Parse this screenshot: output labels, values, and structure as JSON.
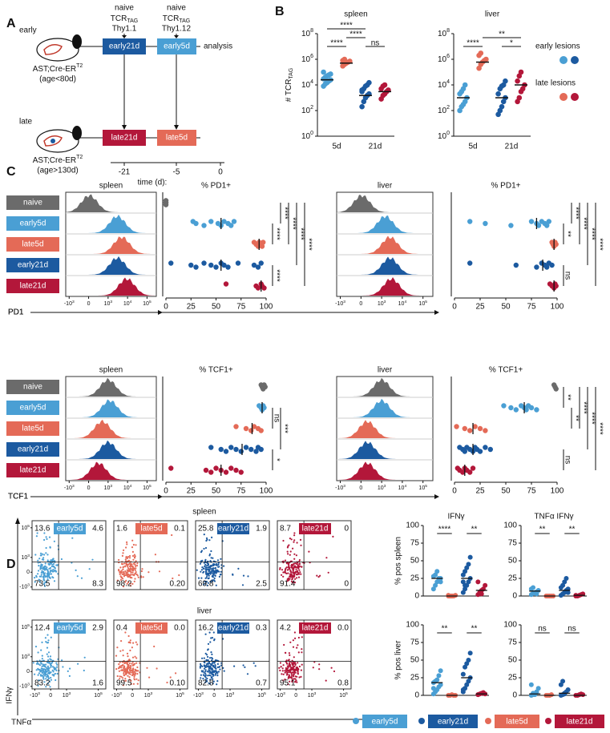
{
  "panel_a": {
    "label": "A",
    "injections": [
      {
        "naive": "naive",
        "tcr": "TCR",
        "sub": "TAG",
        "marker": "Thy1.1"
      },
      {
        "naive": "naive",
        "tcr": "TCR",
        "sub": "TAG",
        "marker": "Thy1.12"
      }
    ],
    "cohorts": [
      {
        "name": "early",
        "strain": "AST;Cre-ER",
        "sup": "T2",
        "age": "(age<80d)",
        "boxes": [
          "early21d",
          "early5d"
        ],
        "colors": [
          "#1c5aa0",
          "#4a9fd4"
        ]
      },
      {
        "name": "late",
        "strain": "AST;Cre-ER",
        "sup": "T2",
        "age": "(age>130d)",
        "boxes": [
          "late21d",
          "late5d"
        ],
        "colors": [
          "#b3173a",
          "#e46a57"
        ]
      }
    ],
    "analysis": "analysis",
    "time_ticks": [
      -21,
      -5,
      0
    ],
    "time_label": "time (d):"
  },
  "panel_b": {
    "label": "B",
    "y_label": "# TCR",
    "y_label_sub": "TAG",
    "yscale": "log",
    "ylim": [
      1,
      100000000
    ],
    "yticks": [
      {
        "value": 1,
        "label": "10",
        "exp": "0"
      },
      {
        "value": 100,
        "label": "10",
        "exp": "2"
      },
      {
        "value": 10000,
        "label": "10",
        "exp": "4"
      },
      {
        "value": 1000000,
        "label": "10",
        "exp": "6"
      },
      {
        "value": 100000000,
        "label": "10",
        "exp": "8"
      }
    ],
    "categories": [
      "5d",
      "21d"
    ],
    "legend": [
      {
        "name": "early lesions",
        "colors": [
          "#4a9fd4",
          "#1c5aa0"
        ]
      },
      {
        "name": "late lesions",
        "colors": [
          "#e46a57",
          "#b3173a"
        ]
      }
    ],
    "charts": [
      {
        "title": "spleen",
        "groups": [
          {
            "color": "#4a9fd4",
            "values": [
              8000,
              12000,
              15000,
              20000,
              25000,
              30000,
              40000,
              50000,
              60000,
              70000,
              100000,
              30000
            ],
            "median": 25000
          },
          {
            "color": "#e46a57",
            "values": [
              300000,
              400000,
              500000,
              600000,
              700000,
              800000,
              1000000
            ],
            "median": 500000
          },
          {
            "color": "#1c5aa0",
            "values": [
              200,
              500,
              1000,
              1500,
              2000,
              3000,
              5000,
              8000,
              10000,
              15000,
              4000
            ],
            "median": 1500
          },
          {
            "color": "#b3173a",
            "values": [
              800,
              1500,
              2000,
              3000,
              4000,
              5000,
              8000,
              10000
            ],
            "median": 3000
          }
        ],
        "brackets": [
          {
            "from": 0,
            "to": 1,
            "text": "****"
          },
          {
            "from": 2,
            "to": 3,
            "text": "ns"
          },
          {
            "from": 1,
            "to": 2,
            "text": "****"
          },
          {
            "from": 0,
            "to": 2,
            "text": "****"
          }
        ]
      },
      {
        "title": "liver",
        "groups": [
          {
            "color": "#4a9fd4",
            "values": [
              100,
              200,
              300,
              500,
              1000,
              2000,
              3000,
              5000,
              10000
            ],
            "median": 1000
          },
          {
            "color": "#e46a57",
            "values": [
              200000,
              400000,
              600000,
              800000,
              1000000,
              2000000,
              3000000
            ],
            "median": 600000
          },
          {
            "color": "#1c5aa0",
            "values": [
              50,
              100,
              200,
              500,
              1000,
              2000,
              5000,
              8000,
              10000,
              20000
            ],
            "median": 1000
          },
          {
            "color": "#b3173a",
            "values": [
              500,
              1000,
              3000,
              5000,
              10000,
              20000,
              50000,
              100000
            ],
            "median": 10000
          }
        ],
        "brackets": [
          {
            "from": 0,
            "to": 1,
            "text": "****"
          },
          {
            "from": 2,
            "to": 3,
            "text": "*"
          },
          {
            "from": 1,
            "to": 3,
            "text": "**"
          }
        ]
      }
    ]
  },
  "panel_c": {
    "label": "C",
    "groups": [
      "naive",
      "early5d",
      "late5d",
      "early21d",
      "late21d"
    ],
    "group_colors": [
      "#6b6b6b",
      "#4a9fd4",
      "#e46a57",
      "#1c5aa0",
      "#b3173a"
    ],
    "hist_xlim": [
      -1500,
      300000
    ],
    "hist_xticks": [
      {
        "value": -1000,
        "label": "-10",
        "exp": "3"
      },
      0,
      {
        "value": 1000,
        "label": "10",
        "exp": "3"
      },
      {
        "value": 10000,
        "label": "10",
        "exp": "4"
      },
      {
        "value": 100000,
        "label": "10",
        "exp": "5"
      }
    ],
    "xlim": [
      0,
      100
    ],
    "xticks": [
      0,
      25,
      50,
      75,
      100
    ],
    "plots": [
      {
        "tissue": "spleen",
        "title": "% PD1+",
        "marker": "PD1",
        "peaks": [
          40,
          3000,
          5000,
          3000,
          9000
        ],
        "values": [
          [
            0,
            0,
            0,
            0,
            0,
            0
          ],
          [
            27,
            30,
            38,
            45,
            52,
            55,
            58,
            62,
            65,
            68
          ],
          [
            88,
            90,
            92,
            93,
            95,
            96,
            97
          ],
          [
            5,
            25,
            30,
            38,
            45,
            50,
            55,
            58,
            62,
            72,
            88,
            92,
            95
          ],
          [
            60,
            90,
            92,
            95,
            96,
            98
          ]
        ],
        "medians": [
          null,
          55,
          93,
          55,
          95
        ],
        "brackets": [
          {
            "from": 1,
            "to": 2,
            "text": "****"
          },
          {
            "from": 3,
            "to": 4,
            "text": "****"
          },
          {
            "from": 0,
            "to": 1,
            "text": "****"
          },
          {
            "from": 0,
            "to": 2,
            "text": "****"
          },
          {
            "from": 0,
            "to": 3,
            "text": "****"
          },
          {
            "from": 0,
            "to": 4,
            "text": "****"
          }
        ]
      },
      {
        "tissue": "liver",
        "title": "% PD1+",
        "marker": "PD1",
        "peaks": [
          40,
          1500,
          2500,
          2500,
          3000
        ],
        "values": [
          [],
          [
            15,
            30,
            55,
            75,
            80,
            82,
            85,
            88,
            90,
            92
          ],
          [
            95,
            96,
            97,
            98,
            99
          ],
          [
            15,
            60,
            80,
            85,
            88,
            90,
            92,
            95
          ],
          [
            93,
            95,
            97,
            98,
            99
          ]
        ],
        "medians": [
          null,
          80,
          97,
          86,
          97
        ],
        "brackets": [
          {
            "from": 1,
            "to": 2,
            "text": "**"
          },
          {
            "from": 3,
            "to": 4,
            "text": "ns"
          },
          {
            "from": 0,
            "to": 1,
            "text": "****"
          },
          {
            "from": 0,
            "to": 2,
            "text": "****"
          },
          {
            "from": 0,
            "to": 3,
            "text": "****"
          },
          {
            "from": 0,
            "to": 4,
            "text": "****"
          }
        ]
      },
      {
        "tissue": "spleen",
        "title": "% TCF1+",
        "marker": "TCF1",
        "peaks": [
          1000,
          1200,
          700,
          1000,
          500
        ],
        "values": [
          [
            95,
            96,
            97,
            98,
            99
          ],
          [
            93,
            95,
            96,
            97,
            98
          ],
          [
            70,
            80,
            85,
            88,
            92,
            95
          ],
          [
            45,
            55,
            60,
            65,
            70,
            75,
            80,
            85,
            90,
            92,
            95
          ],
          [
            5,
            40,
            45,
            50,
            55,
            60,
            65,
            70,
            75
          ]
        ],
        "medians": [
          null,
          96,
          86,
          76,
          55
        ],
        "brackets": [
          {
            "from": 1,
            "to": 2,
            "text": "ns"
          },
          {
            "from": 3,
            "to": 4,
            "text": "*"
          },
          {
            "from": 1,
            "to": 3,
            "text": "***"
          }
        ]
      },
      {
        "tissue": "liver",
        "title": "% TCF1+",
        "marker": "TCF1",
        "peaks": [
          1000,
          1000,
          300,
          300,
          300
        ],
        "values": [
          [
            97,
            98,
            99
          ],
          [
            48,
            55,
            60,
            65,
            68,
            70,
            72,
            75,
            80
          ],
          [
            2,
            10,
            15,
            20,
            25,
            30
          ],
          [
            5,
            8,
            10,
            12,
            15,
            18,
            20,
            22,
            25,
            30,
            35
          ],
          [
            3,
            5,
            8,
            10,
            12,
            15,
            18
          ]
        ],
        "medians": [
          null,
          68,
          18,
          18,
          10
        ],
        "brackets": [
          {
            "from": 0,
            "to": 1,
            "text": "**"
          },
          {
            "from": 1,
            "to": 2,
            "text": "**"
          },
          {
            "from": 3,
            "to": 4,
            "text": "ns"
          },
          {
            "from": 0,
            "to": 2,
            "text": "****"
          },
          {
            "from": 0,
            "to": 3,
            "text": "****"
          },
          {
            "from": 0,
            "to": 4,
            "text": "****"
          }
        ]
      }
    ]
  },
  "panel_d": {
    "label": "D",
    "x_marker": "TNFα",
    "y_marker": "IFNγ",
    "flow_lim": [
      -1500,
      300000
    ],
    "flow_ticks": [
      {
        "value": -1000,
        "label": "-10",
        "exp": "3"
      },
      0,
      {
        "value": 1000,
        "label": "10",
        "exp": "3"
      },
      {
        "value": 100000,
        "label": "10",
        "exp": "5"
      }
    ],
    "tissues": [
      {
        "name": "spleen",
        "y_label": "% pos spleen",
        "plots": [
          {
            "group": "early5d",
            "color": "#4a9fd4",
            "q": [
              "13.6",
              "4.6",
              "73.5",
              "8.3"
            ]
          },
          {
            "group": "late5d",
            "color": "#e46a57",
            "q": [
              "1.6",
              "0.1",
              "98.2",
              "0.20"
            ]
          },
          {
            "group": "early21d",
            "color": "#1c5aa0",
            "q": [
              "25.8",
              "1.9",
              "69.8",
              "2.5"
            ]
          },
          {
            "group": "late21d",
            "color": "#b3173a",
            "q": [
              "8.7",
              "0",
              "91.4",
              "0"
            ]
          }
        ],
        "charts": [
          {
            "values": [
              [
                10,
                15,
                20,
                22,
                25,
                28,
                30,
                35,
                25,
                20
              ],
              [
                0,
                0,
                0,
                0,
                1,
                1,
                0,
                0
              ],
              [
                5,
                10,
                15,
                20,
                25,
                30,
                35,
                40,
                45,
                55,
                20,
                15
              ],
              [
                2,
                5,
                8,
                10,
                15,
                20,
                5,
                3
              ]
            ],
            "medians": [
              25,
              0,
              25,
              8
            ],
            "brackets": [
              {
                "from": 0,
                "to": 1,
                "text": "****"
              },
              {
                "from": 2,
                "to": 3,
                "text": "**"
              }
            ]
          },
          {
            "values": [
              [
                2,
                4,
                5,
                6,
                8,
                10,
                12,
                5,
                3
              ],
              [
                0,
                0,
                0,
                0,
                0
              ],
              [
                1,
                3,
                5,
                8,
                10,
                12,
                15,
                20,
                25,
                5
              ],
              [
                0,
                0,
                1,
                2,
                3,
                1
              ]
            ],
            "medians": [
              7,
              0,
              8,
              1
            ],
            "brackets": [
              {
                "from": 0,
                "to": 1,
                "text": "**"
              },
              {
                "from": 2,
                "to": 3,
                "text": "**"
              }
            ]
          }
        ]
      },
      {
        "name": "liver",
        "y_label": "% pos liver",
        "plots": [
          {
            "group": "early5d",
            "color": "#4a9fd4",
            "q": [
              "12.4",
              "2.9",
              "83.2",
              "1.6"
            ]
          },
          {
            "group": "late5d",
            "color": "#e46a57",
            "q": [
              "0.4",
              "0.0",
              "99.5",
              "0.10"
            ]
          },
          {
            "group": "early21d",
            "color": "#1c5aa0",
            "q": [
              "16.2",
              "0.3",
              "82.8",
              "0.7"
            ]
          },
          {
            "group": "late21d",
            "color": "#b3173a",
            "q": [
              "4.2",
              "0.0",
              "95.1",
              "0.8"
            ]
          }
        ],
        "charts": [
          {
            "values": [
              [
                2,
                5,
                8,
                12,
                15,
                18,
                20,
                22,
                28,
                35,
                10
              ],
              [
                0,
                0,
                1,
                0,
                0
              ],
              [
                5,
                10,
                15,
                20,
                25,
                30,
                40,
                45,
                50,
                60,
                8
              ],
              [
                1,
                2,
                3,
                4,
                2,
                1
              ]
            ],
            "medians": [
              18,
              0,
              25,
              2
            ],
            "brackets": [
              {
                "from": 0,
                "to": 1,
                "text": "**"
              },
              {
                "from": 2,
                "to": 3,
                "text": "**"
              }
            ]
          },
          {
            "values": [
              [
                0,
                1,
                2,
                5,
                10,
                15,
                3,
                1
              ],
              [
                0,
                0,
                0,
                1
              ],
              [
                0,
                1,
                2,
                5,
                8,
                15,
                20,
                3
              ],
              [
                0,
                0,
                1,
                2,
                1
              ]
            ],
            "medians": [
              2,
              0,
              3,
              0
            ],
            "brackets": [
              {
                "from": 0,
                "to": 1,
                "text": "ns"
              },
              {
                "from": 2,
                "to": 3,
                "text": "ns"
              }
            ]
          }
        ]
      }
    ],
    "summary": {
      "titles": [
        "IFNγ",
        "TNFα IFNγ"
      ],
      "ylim": [
        0,
        100
      ],
      "yticks": [
        0,
        25,
        50,
        75,
        100
      ],
      "colors": [
        "#4a9fd4",
        "#e46a57",
        "#1c5aa0",
        "#b3173a"
      ]
    },
    "legend": [
      {
        "name": "early5d",
        "color": "#4a9fd4"
      },
      {
        "name": "early21d",
        "color": "#1c5aa0"
      },
      {
        "name": "late5d",
        "color": "#e46a57"
      },
      {
        "name": "late21d",
        "color": "#b3173a"
      }
    ]
  }
}
